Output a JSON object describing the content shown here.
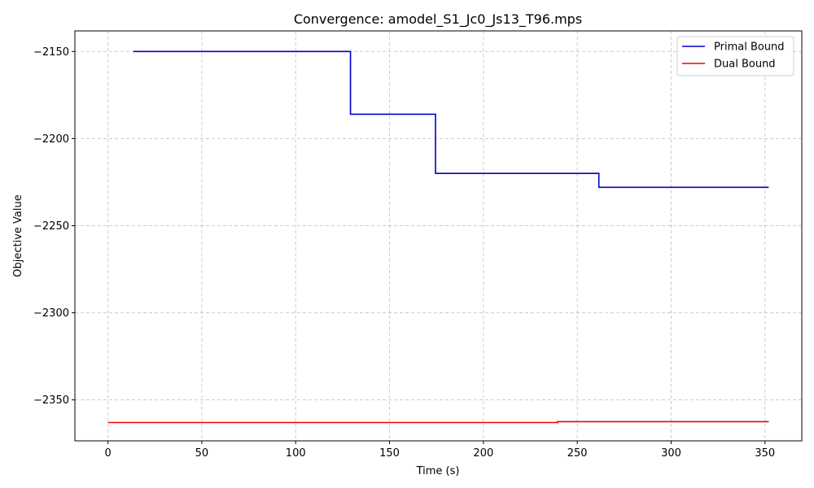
{
  "chart_data": {
    "type": "line",
    "title": "Convergence: amodel_S1_Jc0_Js13_T96.mps",
    "xlabel": "Time (s)",
    "ylabel": "Objective Value",
    "xlim": [
      -17.6,
      369.6
    ],
    "ylim": [
      -2373.5,
      -2138.2
    ],
    "xticks": [
      0,
      50,
      100,
      150,
      200,
      250,
      300,
      350
    ],
    "yticks": [
      -2350,
      -2300,
      -2250,
      -2200,
      -2150
    ],
    "xtick_labels": [
      "0",
      "50",
      "100",
      "150",
      "200",
      "250",
      "300",
      "350"
    ],
    "ytick_labels": [
      "−2350",
      "−2300",
      "−2250",
      "−2200",
      "−2150"
    ],
    "grid": true,
    "legend_position": "top-right",
    "step": true,
    "series": [
      {
        "name": "Primal Bound",
        "color": "#0000cc",
        "x": [
          13.5,
          129.2,
          174.5,
          261.5,
          352.0
        ],
        "y": [
          -2150.0,
          -2186.0,
          -2220.0,
          -2228.0,
          -2228.0
        ]
      },
      {
        "name": "Dual Bound",
        "color": "#ee0000",
        "x": [
          0.0,
          239.5,
          352.0
        ],
        "y": [
          -2363.0,
          -2362.5,
          -2362.5
        ]
      }
    ]
  }
}
